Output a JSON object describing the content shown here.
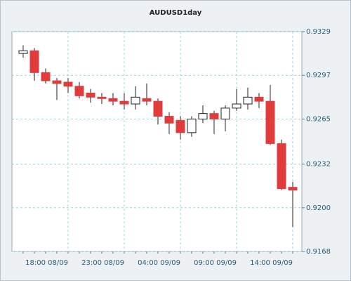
{
  "chart_data": {
    "type": "candlestick",
    "title": "AUDUSD1day",
    "categories": [
      null,
      null,
      null,
      null,
      "18:00 08/09",
      null,
      null,
      null,
      null,
      "23:00 08/09",
      null,
      null,
      null,
      null,
      "04:00 09/09",
      null,
      null,
      null,
      null,
      "09:00 09/09",
      null,
      null,
      null,
      null,
      "14:00 09/09"
    ],
    "open": [
      0.9313,
      0.9315,
      0.9299,
      0.9293,
      0.9292,
      0.9289,
      0.9284,
      0.9281,
      0.928,
      0.9278,
      0.9276,
      0.928,
      0.9278,
      0.9267,
      0.9264,
      0.9255,
      0.9265,
      0.9269,
      0.9265,
      0.9273,
      0.9276,
      0.9281,
      0.9278,
      0.9247,
      0.9215
    ],
    "high": [
      0.9319,
      0.9317,
      0.9302,
      0.9295,
      0.9295,
      0.9292,
      0.9287,
      0.9284,
      0.9284,
      0.9284,
      0.9289,
      0.9291,
      0.928,
      0.927,
      0.9267,
      0.9267,
      0.9275,
      0.9271,
      0.9275,
      0.9287,
      0.9288,
      0.9284,
      0.929,
      0.925,
      0.9219
    ],
    "low": [
      0.931,
      0.9293,
      0.9291,
      0.9279,
      0.9284,
      0.928,
      0.9277,
      0.9276,
      0.9275,
      0.9272,
      0.9272,
      0.9275,
      0.9261,
      0.9254,
      0.925,
      0.9252,
      0.9262,
      0.9254,
      0.9256,
      0.9271,
      0.9272,
      0.9273,
      0.9246,
      0.9213,
      0.9186
    ],
    "close": [
      0.9315,
      0.9299,
      0.9293,
      0.9291,
      0.9289,
      0.9282,
      0.9281,
      0.928,
      0.9278,
      0.9276,
      0.9281,
      0.9278,
      0.9267,
      0.9262,
      0.9255,
      0.9265,
      0.9269,
      0.9265,
      0.9273,
      0.9276,
      0.9281,
      0.9278,
      0.9247,
      0.9214,
      0.9213
    ],
    "up_color": "#ffffff",
    "down_color": "#e03c3c",
    "ylim": [
      0.9168,
      0.9329
    ],
    "yticks": [
      0.9168,
      {
        "value": 0.92,
        "label": "0.9200"
      },
      0.9232,
      0.9265,
      0.9297,
      0.9329
    ],
    "grid": true
  }
}
